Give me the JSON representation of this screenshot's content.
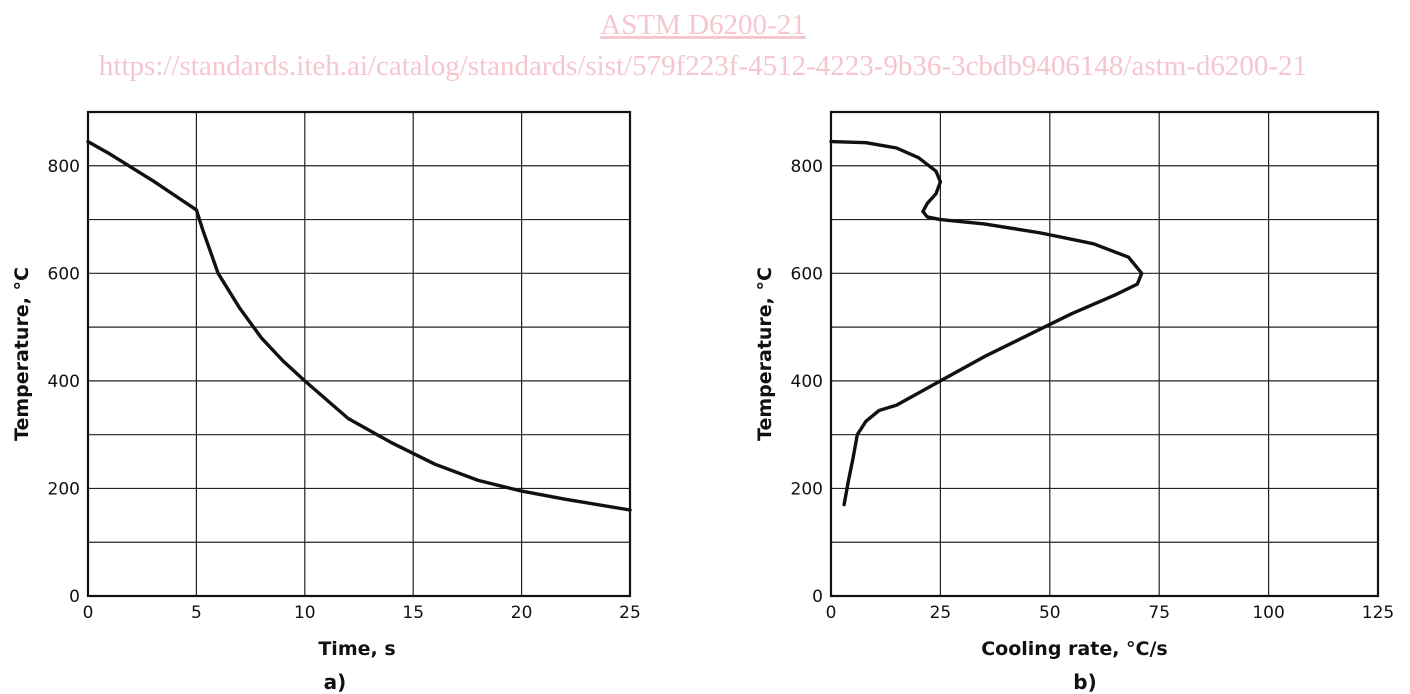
{
  "watermark": {
    "title": "ASTM D6200-21",
    "url": "https://standards.iteh.ai/catalog/standards/sist/579f223f-4512-4223-9b36-3cbdb9406148/astm-d6200-21"
  },
  "chart_data": [
    {
      "type": "line",
      "panel_label": "a)",
      "xlabel": "Time, s",
      "ylabel": "Temperature, °C",
      "xlim": [
        0,
        25
      ],
      "ylim": [
        0,
        900
      ],
      "x_ticks": [
        0,
        5,
        10,
        15,
        20,
        25
      ],
      "y_ticks": [
        0,
        200,
        400,
        600,
        800
      ],
      "x_grid": [
        0,
        5,
        10,
        15,
        20,
        25
      ],
      "y_grid": [
        0,
        100,
        200,
        300,
        400,
        500,
        600,
        700,
        800,
        900
      ],
      "grid": true,
      "series": [
        {
          "x": [
            0,
            1,
            2,
            3,
            4,
            5,
            5.3,
            6,
            7,
            8,
            9,
            10,
            12,
            14,
            16,
            18,
            20,
            22,
            25
          ],
          "y": [
            845,
            822,
            797,
            772,
            745,
            718,
            680,
            600,
            535,
            480,
            437,
            400,
            330,
            285,
            245,
            215,
            195,
            180,
            160
          ]
        }
      ]
    },
    {
      "type": "line",
      "panel_label": "b)",
      "xlabel": "Cooling rate, °C/s",
      "ylabel": "Temperature, °C",
      "xlim": [
        0,
        125
      ],
      "ylim": [
        0,
        900
      ],
      "x_ticks": [
        0,
        25,
        50,
        75,
        100,
        125
      ],
      "y_ticks": [
        0,
        200,
        400,
        600,
        800
      ],
      "x_grid": [
        0,
        25,
        50,
        75,
        100,
        125
      ],
      "y_grid": [
        0,
        100,
        200,
        300,
        400,
        500,
        600,
        700,
        800,
        900
      ],
      "grid": true,
      "series": [
        {
          "x": [
            0,
            8,
            15,
            20,
            24,
            25,
            24,
            22,
            21,
            22,
            25,
            35,
            48,
            60,
            68,
            71,
            70,
            65,
            55,
            45,
            35,
            25,
            15,
            11,
            8,
            6,
            5,
            4,
            3
          ],
          "y": [
            845,
            843,
            833,
            815,
            790,
            770,
            748,
            730,
            715,
            705,
            700,
            692,
            675,
            655,
            630,
            600,
            580,
            560,
            525,
            485,
            445,
            400,
            355,
            345,
            325,
            300,
            255,
            215,
            170
          ]
        }
      ]
    }
  ]
}
